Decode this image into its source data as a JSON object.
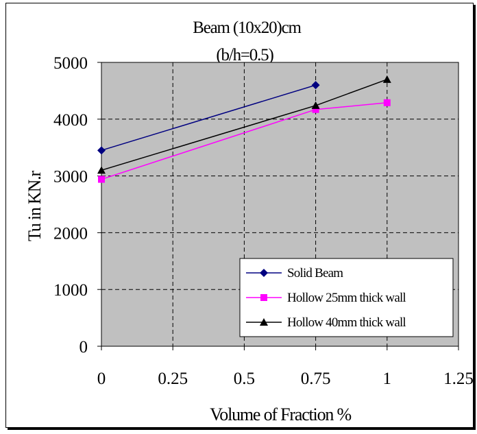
{
  "chart_data": {
    "type": "line",
    "title": "Beam (10x20)cm",
    "subtitle": "(b/h=0.5)",
    "xlabel": "Volume of Fraction %",
    "ylabel": "Tu in KN.r",
    "xlim": [
      0,
      1.25
    ],
    "ylim": [
      0,
      5000
    ],
    "x_ticks": [
      "0",
      "0.25",
      "0.5",
      "0.75",
      "1",
      "1.25"
    ],
    "y_ticks": [
      "0",
      "1000",
      "2000",
      "3000",
      "4000",
      "5000"
    ],
    "grid": true,
    "legend_position": "bottom-right",
    "plot_background": "#c0c0c0",
    "series": [
      {
        "name": "Solid Beam",
        "color": "#000080",
        "marker": "diamond",
        "x": [
          0,
          0.75
        ],
        "y": [
          3450,
          4600
        ]
      },
      {
        "name": "Hollow 25mm thick wall",
        "color": "#ff00ff",
        "marker": "square",
        "x": [
          0,
          0.75,
          1
        ],
        "y": [
          2940,
          4170,
          4290
        ]
      },
      {
        "name": "Hollow 40mm thick wall",
        "color": "#000000",
        "marker": "triangle",
        "x": [
          0,
          0.75,
          1
        ],
        "y": [
          3100,
          4240,
          4700
        ]
      }
    ]
  }
}
